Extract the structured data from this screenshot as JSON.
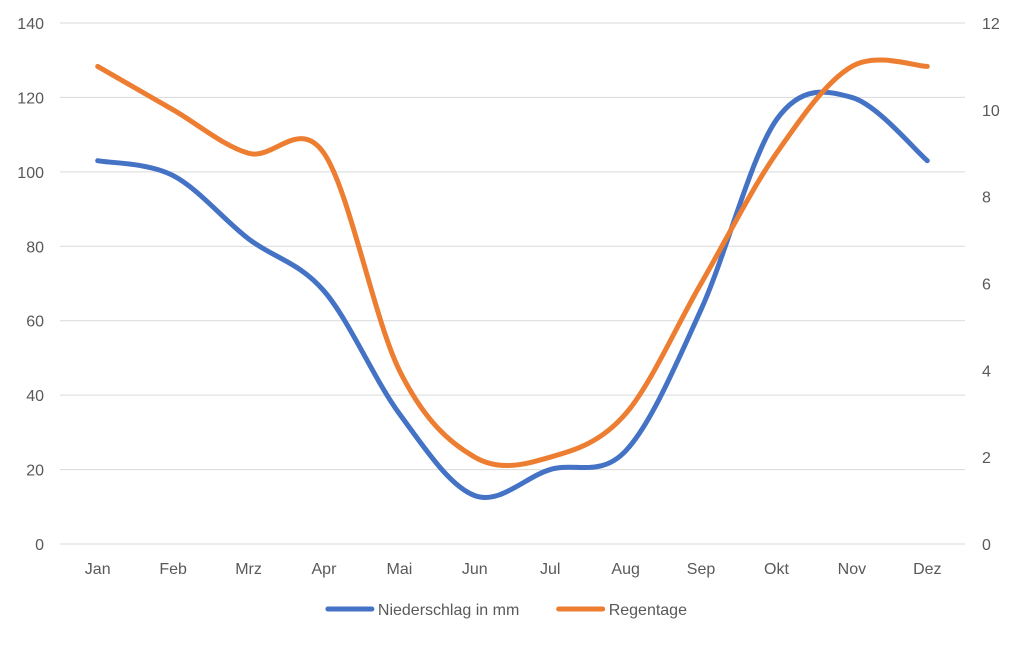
{
  "chart_data": {
    "type": "line",
    "categories": [
      "Jan",
      "Feb",
      "Mrz",
      "Apr",
      "Mai",
      "Jun",
      "Jul",
      "Aug",
      "Sep",
      "Okt",
      "Nov",
      "Dez"
    ],
    "series": [
      {
        "name": "Niederschlag in mm",
        "axis": "left",
        "color": "#4472C4",
        "values": [
          103,
          99,
          82,
          68,
          35,
          13,
          20,
          25,
          63,
          114,
          120,
          103
        ]
      },
      {
        "name": "Regentage",
        "axis": "right",
        "color": "#ED7D31",
        "values": [
          11,
          10,
          9,
          9,
          4,
          2,
          2,
          3,
          6,
          9,
          11,
          11
        ]
      }
    ],
    "y_left": {
      "range": [
        0,
        140
      ],
      "ticks": [
        "0",
        "20",
        "40",
        "60",
        "80",
        "100",
        "120",
        "140"
      ]
    },
    "y_right": {
      "range": [
        0,
        12
      ],
      "ticks": [
        "0",
        "2",
        "4",
        "6",
        "8",
        "10",
        "12"
      ]
    },
    "grid": true,
    "legend_position": "bottom",
    "line_smoothing": "smooth"
  }
}
